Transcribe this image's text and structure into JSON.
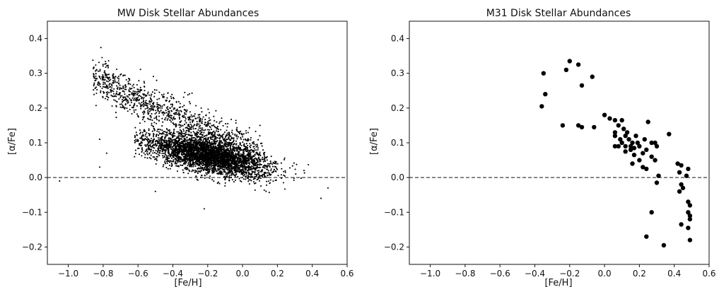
{
  "chart_data": [
    {
      "type": "scatter",
      "title": "MW Disk Stellar Abundances",
      "xlabel": "[Fe/H]",
      "ylabel": "[α/Fe]",
      "xlim": [
        -1.12,
        0.6
      ],
      "ylim": [
        -0.25,
        0.45
      ],
      "xticks": [
        "−1.0",
        "−0.8",
        "−0.6",
        "−0.4",
        "−0.2",
        "0.0",
        "0.2",
        "0.4",
        "0.6"
      ],
      "yticks": [
        "−0.2",
        "−0.1",
        "0.0",
        "0.1",
        "0.2",
        "0.3",
        "0.4"
      ],
      "reference_line": {
        "y": 0.0,
        "style": "dashed"
      },
      "marker": "small dot",
      "grid": false,
      "series": [
        {
          "approx_points": 5000,
          "components": [
            {
              "description": "high-alpha sequence",
              "fe_h_range": [
                -0.85,
                0.1
              ],
              "alpha_fe_trend": "from ~0.28 at [Fe/H]=-0.8 down to ~0.12 at [Fe/H]=0.0"
            },
            {
              "description": "low-alpha sequence",
              "fe_h_range": [
                -0.6,
                0.45
              ],
              "alpha_fe_trend": "from ~0.10 at [Fe/H]=-0.5 down to ~0.01 at [Fe/H]=0.4"
            }
          ],
          "outliers": [
            [
              -1.05,
              -0.01
            ],
            [
              -0.82,
              0.11
            ],
            [
              -0.78,
              0.07
            ],
            [
              -0.82,
              0.03
            ],
            [
              -0.5,
              -0.04
            ],
            [
              -0.22,
              -0.09
            ],
            [
              0.45,
              -0.06
            ],
            [
              0.49,
              -0.03
            ],
            [
              -0.62,
              0.06
            ],
            [
              0.1,
              0.15
            ]
          ]
        }
      ]
    },
    {
      "type": "scatter",
      "title": "M31 Disk Stellar Abundances",
      "xlabel": "[Fe/H]",
      "ylabel": "[α/Fe]",
      "xlim": [
        -1.12,
        0.6
      ],
      "ylim": [
        -0.25,
        0.45
      ],
      "xticks": [
        "−1.0",
        "−0.8",
        "−0.6",
        "−0.4",
        "−0.2",
        "0.0",
        "0.2",
        "0.4",
        "0.6"
      ],
      "yticks": [
        "−0.2",
        "−0.1",
        "0.0",
        "0.1",
        "0.2",
        "0.3",
        "0.4"
      ],
      "reference_line": {
        "y": 0.0,
        "style": "dashed"
      },
      "marker": "large dot",
      "grid": false,
      "series": [
        {
          "points": [
            [
              -0.36,
              0.205
            ],
            [
              -0.35,
              0.3
            ],
            [
              -0.34,
              0.24
            ],
            [
              -0.22,
              0.31
            ],
            [
              -0.2,
              0.335
            ],
            [
              -0.15,
              0.325
            ],
            [
              -0.13,
              0.265
            ],
            [
              -0.07,
              0.29
            ],
            [
              -0.24,
              0.15
            ],
            [
              -0.15,
              0.15
            ],
            [
              -0.13,
              0.145
            ],
            [
              -0.06,
              0.145
            ],
            [
              0.0,
              0.18
            ],
            [
              0.03,
              0.17
            ],
            [
              0.06,
              0.165
            ],
            [
              0.08,
              0.15
            ],
            [
              0.1,
              0.165
            ],
            [
              0.06,
              0.12
            ],
            [
              0.09,
              0.11
            ],
            [
              0.11,
              0.14
            ],
            [
              0.13,
              0.13
            ],
            [
              0.1,
              0.1
            ],
            [
              0.12,
              0.09
            ],
            [
              0.14,
              0.11
            ],
            [
              0.16,
              0.1
            ],
            [
              0.15,
              0.08
            ],
            [
              0.17,
              0.065
            ],
            [
              0.08,
              0.09
            ],
            [
              0.06,
              0.09
            ],
            [
              0.12,
              0.075
            ],
            [
              0.2,
              0.09
            ],
            [
              0.22,
              0.07
            ],
            [
              0.24,
              0.08
            ],
            [
              0.27,
              0.06
            ],
            [
              0.29,
              0.1
            ],
            [
              0.3,
              0.09
            ],
            [
              0.23,
              0.11
            ],
            [
              0.25,
              0.16
            ],
            [
              0.27,
              0.1
            ],
            [
              0.18,
              0.12
            ],
            [
              0.2,
              0.05
            ],
            [
              0.22,
              0.03
            ],
            [
              0.16,
              0.04
            ],
            [
              0.24,
              0.025
            ],
            [
              0.29,
              0.05
            ],
            [
              0.31,
              0.005
            ],
            [
              0.3,
              -0.015
            ],
            [
              0.37,
              0.125
            ],
            [
              0.42,
              0.04
            ],
            [
              0.44,
              0.035
            ],
            [
              0.43,
              0.015
            ],
            [
              0.47,
              0.005
            ],
            [
              0.48,
              0.025
            ],
            [
              0.44,
              -0.02
            ],
            [
              0.43,
              -0.04
            ],
            [
              0.45,
              -0.03
            ],
            [
              0.48,
              -0.07
            ],
            [
              0.49,
              -0.08
            ],
            [
              0.48,
              -0.1
            ],
            [
              0.49,
              -0.11
            ],
            [
              0.49,
              -0.12
            ],
            [
              0.48,
              -0.145
            ],
            [
              0.49,
              -0.18
            ],
            [
              0.44,
              -0.135
            ],
            [
              0.27,
              -0.1
            ],
            [
              0.24,
              -0.17
            ],
            [
              0.34,
              -0.195
            ],
            [
              0.06,
              0.13
            ],
            [
              0.12,
              0.12
            ],
            [
              0.15,
              0.09
            ],
            [
              0.19,
              0.1
            ],
            [
              0.17,
              0.085
            ]
          ]
        }
      ]
    }
  ]
}
